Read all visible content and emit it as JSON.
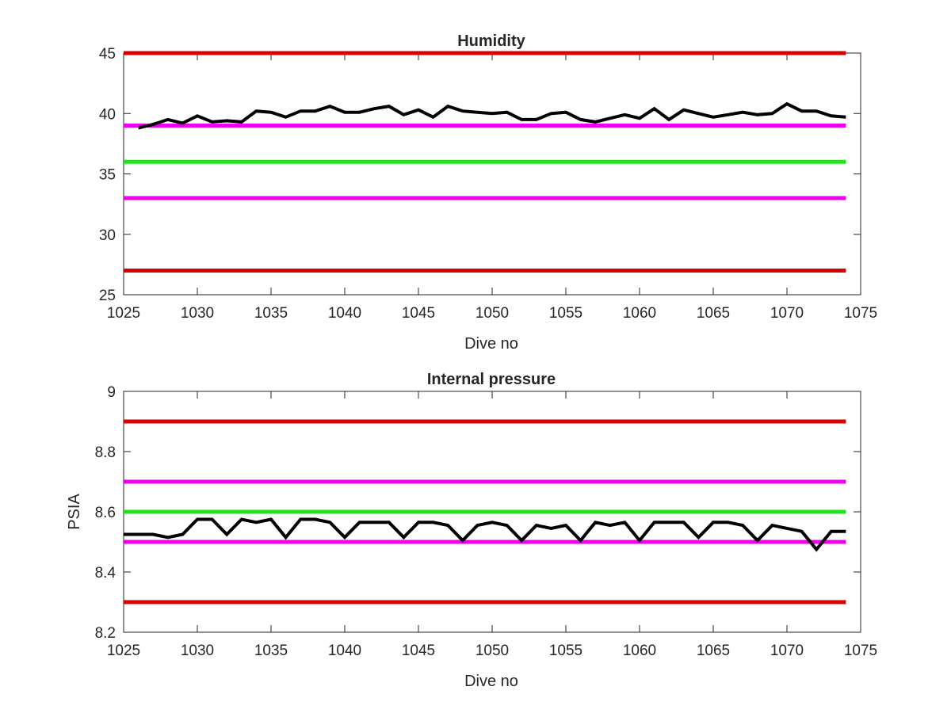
{
  "chart_data": [
    {
      "type": "line",
      "title": "Humidity",
      "xlabel": "Dive no",
      "ylabel": "",
      "xlim": [
        1025,
        1075
      ],
      "ylim": [
        25,
        45
      ],
      "xticks": [
        "1025",
        "1030",
        "1035",
        "1040",
        "1045",
        "1050",
        "1055",
        "1060",
        "1065",
        "1070",
        "1075"
      ],
      "yticks": [
        "25",
        "30",
        "35",
        "40",
        "45"
      ],
      "grid": false,
      "reference_lines": [
        {
          "y": 45,
          "color": "#d60000"
        },
        {
          "y": 39,
          "color": "#ee00ee"
        },
        {
          "y": 36,
          "color": "#22e022"
        },
        {
          "y": 33,
          "color": "#ee00ee"
        },
        {
          "y": 27,
          "color": "#d60000"
        }
      ],
      "series": [
        {
          "color": "#000000",
          "x": [
            1026,
            1027,
            1028,
            1029,
            1030,
            1031,
            1032,
            1033,
            1034,
            1035,
            1036,
            1037,
            1038,
            1039,
            1040,
            1041,
            1042,
            1043,
            1044,
            1045,
            1046,
            1047,
            1048,
            1049,
            1050,
            1051,
            1052,
            1053,
            1054,
            1055,
            1056,
            1057,
            1058,
            1059,
            1060,
            1061,
            1062,
            1063,
            1064,
            1065,
            1066,
            1067,
            1068,
            1069,
            1070,
            1071,
            1072,
            1073,
            1074
          ],
          "values": [
            38.8,
            39.1,
            39.5,
            39.2,
            39.8,
            39.3,
            39.4,
            39.3,
            40.2,
            40.1,
            39.7,
            40.2,
            40.2,
            40.6,
            40.1,
            40.1,
            40.4,
            40.6,
            39.9,
            40.3,
            39.7,
            40.6,
            40.2,
            40.1,
            40.0,
            40.1,
            39.5,
            39.5,
            40.0,
            40.1,
            39.5,
            39.3,
            39.6,
            39.9,
            39.6,
            40.4,
            39.5,
            40.3,
            40.0,
            39.7,
            39.9,
            40.1,
            39.9,
            40.0,
            40.8,
            40.2,
            40.2,
            39.8,
            39.7
          ]
        }
      ]
    },
    {
      "type": "line",
      "title": "Internal pressure",
      "xlabel": "Dive no",
      "ylabel": "PSIA",
      "xlim": [
        1025,
        1075
      ],
      "ylim": [
        8.2,
        9.0
      ],
      "xticks": [
        "1025",
        "1030",
        "1035",
        "1040",
        "1045",
        "1050",
        "1055",
        "1060",
        "1065",
        "1070",
        "1075"
      ],
      "yticks": [
        "8.2",
        "8.4",
        "8.6",
        "8.8",
        "9"
      ],
      "grid": false,
      "reference_lines": [
        {
          "y": 8.9,
          "color": "#d60000"
        },
        {
          "y": 8.7,
          "color": "#ee00ee"
        },
        {
          "y": 8.6,
          "color": "#22e022"
        },
        {
          "y": 8.5,
          "color": "#ee00ee"
        },
        {
          "y": 8.3,
          "color": "#d60000"
        }
      ],
      "series": [
        {
          "color": "#000000",
          "x": [
            1025,
            1026,
            1027,
            1028,
            1029,
            1030,
            1031,
            1032,
            1033,
            1034,
            1035,
            1036,
            1037,
            1038,
            1039,
            1040,
            1041,
            1042,
            1043,
            1044,
            1045,
            1046,
            1047,
            1048,
            1049,
            1050,
            1051,
            1052,
            1053,
            1054,
            1055,
            1056,
            1057,
            1058,
            1059,
            1060,
            1061,
            1062,
            1063,
            1064,
            1065,
            1066,
            1067,
            1068,
            1069,
            1070,
            1071,
            1072,
            1073,
            1074
          ],
          "values": [
            8.525,
            8.525,
            8.525,
            8.515,
            8.525,
            8.575,
            8.575,
            8.525,
            8.575,
            8.565,
            8.575,
            8.515,
            8.575,
            8.575,
            8.565,
            8.515,
            8.565,
            8.565,
            8.565,
            8.515,
            8.565,
            8.565,
            8.555,
            8.505,
            8.555,
            8.565,
            8.555,
            8.505,
            8.555,
            8.545,
            8.555,
            8.505,
            8.565,
            8.555,
            8.565,
            8.505,
            8.565,
            8.565,
            8.565,
            8.515,
            8.565,
            8.565,
            8.555,
            8.505,
            8.555,
            8.545,
            8.535,
            8.475,
            8.535,
            8.535
          ]
        }
      ]
    }
  ]
}
